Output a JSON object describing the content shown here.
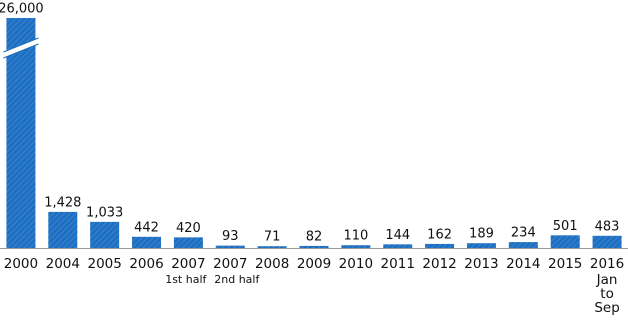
{
  "chart_data": {
    "type": "bar",
    "categories": [
      "2000",
      "2004",
      "2005",
      "2006",
      "2007",
      "2007",
      "2008",
      "2009",
      "2010",
      "2011",
      "2012",
      "2013",
      "2014",
      "2015",
      "2016"
    ],
    "category_notes": [
      null,
      null,
      null,
      null,
      [
        "1st half"
      ],
      [
        "2nd half"
      ],
      null,
      null,
      null,
      null,
      null,
      null,
      null,
      null,
      [
        "Jan",
        "to",
        "Sep"
      ]
    ],
    "values": [
      26000,
      1428,
      1033,
      442,
      420,
      93,
      71,
      82,
      110,
      144,
      162,
      189,
      234,
      501,
      483
    ],
    "value_labels": [
      "26,000",
      "1,428",
      "1,033",
      "442",
      "420",
      "93",
      "71",
      "82",
      "110",
      "144",
      "162",
      "189",
      "234",
      "501",
      "483"
    ],
    "color": "#1d6fc2",
    "axis_break": true
  }
}
